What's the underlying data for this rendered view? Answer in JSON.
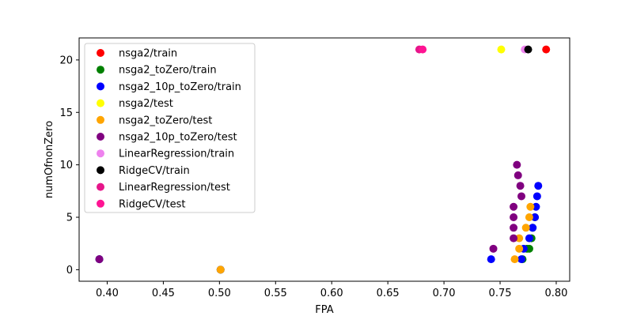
{
  "chart_data": {
    "type": "scatter",
    "title": "",
    "xlabel": "FPA",
    "ylabel": "numOfnonZero",
    "xlim": [
      0.375,
      0.812
    ],
    "ylim": [
      -1.1,
      22.1
    ],
    "xticks": [
      0.4,
      0.45,
      0.5,
      0.55,
      0.6,
      0.65,
      0.7,
      0.75,
      0.8
    ],
    "xtick_labels": [
      "0.40",
      "0.45",
      "0.50",
      "0.55",
      "0.60",
      "0.65",
      "0.70",
      "0.75",
      "0.80"
    ],
    "yticks": [
      0,
      5,
      10,
      15,
      20
    ],
    "ytick_labels": [
      "0",
      "5",
      "10",
      "15",
      "20"
    ],
    "grid": false,
    "legend_position": "top-left",
    "series": [
      {
        "name": "nsga2/train",
        "color": "#ff0000",
        "points": [
          [
            0.791,
            21
          ]
        ]
      },
      {
        "name": "nsga2_toZero/train",
        "color": "#008000",
        "points": [
          [
            0.393,
            1
          ],
          [
            0.501,
            0
          ],
          [
            0.77,
            1
          ],
          [
            0.774,
            2
          ],
          [
            0.776,
            2
          ],
          [
            0.778,
            3
          ],
          [
            0.779,
            4
          ],
          [
            0.781,
            5
          ]
        ]
      },
      {
        "name": "nsga2_10p_toZero/train",
        "color": "#0000ff",
        "points": [
          [
            0.393,
            1
          ],
          [
            0.501,
            0
          ],
          [
            0.742,
            1
          ],
          [
            0.769,
            1
          ],
          [
            0.771,
            2
          ],
          [
            0.776,
            3
          ],
          [
            0.779,
            4
          ],
          [
            0.781,
            5
          ],
          [
            0.782,
            6
          ],
          [
            0.783,
            7
          ],
          [
            0.784,
            8
          ]
        ]
      },
      {
        "name": "nsga2/test",
        "color": "#ffff00",
        "points": [
          [
            0.751,
            21
          ]
        ]
      },
      {
        "name": "nsga2_toZero/test",
        "color": "#ffa500",
        "points": [
          [
            0.501,
            0
          ],
          [
            0.763,
            1
          ],
          [
            0.767,
            2
          ],
          [
            0.767,
            3
          ],
          [
            0.773,
            4
          ],
          [
            0.776,
            5
          ],
          [
            0.777,
            6
          ]
        ]
      },
      {
        "name": "nsga2_10p_toZero/test",
        "color": "#800080",
        "points": [
          [
            0.393,
            1
          ],
          [
            0.744,
            2
          ],
          [
            0.762,
            3
          ],
          [
            0.762,
            4
          ],
          [
            0.762,
            5
          ],
          [
            0.762,
            6
          ],
          [
            0.769,
            7
          ],
          [
            0.768,
            8
          ],
          [
            0.766,
            9
          ],
          [
            0.765,
            10
          ]
        ]
      },
      {
        "name": "LinearRegression/train",
        "color": "#ee82ee",
        "points": [
          [
            0.772,
            21
          ]
        ]
      },
      {
        "name": "RidgeCV/train",
        "color": "#000000",
        "points": [
          [
            0.775,
            21
          ]
        ]
      },
      {
        "name": "LinearRegression/test",
        "color": "#e6168a",
        "points": [
          [
            0.678,
            21
          ]
        ]
      },
      {
        "name": "RidgeCV/test",
        "color": "#ff1493",
        "points": [
          [
            0.681,
            21
          ]
        ]
      }
    ]
  }
}
